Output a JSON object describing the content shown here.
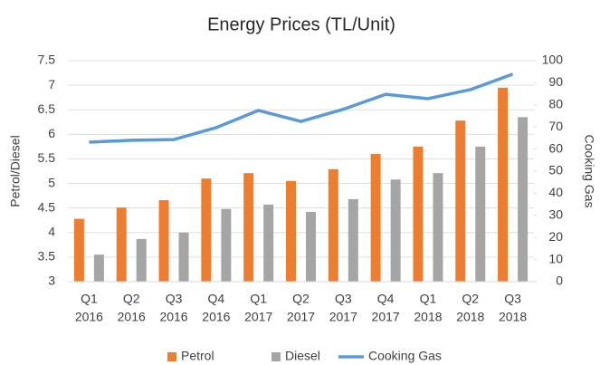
{
  "chart_data": {
    "type": "bar",
    "title": "Energy Prices (TL/Unit)",
    "categories": [
      [
        "Q1",
        "2016"
      ],
      [
        "Q2",
        "2016"
      ],
      [
        "Q3",
        "2016"
      ],
      [
        "Q4",
        "2016"
      ],
      [
        "Q1",
        "2017"
      ],
      [
        "Q2",
        "2017"
      ],
      [
        "Q3",
        "2017"
      ],
      [
        "Q4",
        "2017"
      ],
      [
        "Q1",
        "2018"
      ],
      [
        "Q2",
        "2018"
      ],
      [
        "Q3",
        "2018"
      ]
    ],
    "y_label": "Petrol/Diesel",
    "y2_label": "Cooking Gas",
    "series": [
      {
        "name": "Petrol",
        "type": "bar",
        "color": "#ed7d31",
        "values": [
          4.28,
          4.51,
          4.66,
          5.1,
          5.21,
          5.05,
          5.29,
          5.6,
          5.75,
          6.28,
          6.95
        ]
      },
      {
        "name": "Diesel",
        "type": "bar",
        "color": "#a5a5a5",
        "values": [
          3.55,
          3.87,
          4.0,
          4.48,
          4.57,
          4.42,
          4.68,
          5.08,
          5.21,
          5.75,
          6.35
        ]
      },
      {
        "name": "Cooking Gas",
        "type": "line",
        "axis": "y2",
        "color": "#5b9bd5",
        "values": [
          63.1,
          64,
          64.3,
          69.7,
          77.5,
          72.5,
          78,
          84.8,
          82.8,
          86.9,
          93.9
        ]
      }
    ],
    "ylim": [
      3,
      7.5
    ],
    "yticks": [
      3,
      3.5,
      4,
      4.5,
      5,
      5.5,
      6,
      6.5,
      7,
      7.5
    ],
    "y2lim": [
      0,
      100
    ],
    "y2ticks": [
      0,
      10,
      20,
      30,
      40,
      50,
      60,
      70,
      80,
      90,
      100
    ],
    "grid": true,
    "legend": "bottom"
  }
}
